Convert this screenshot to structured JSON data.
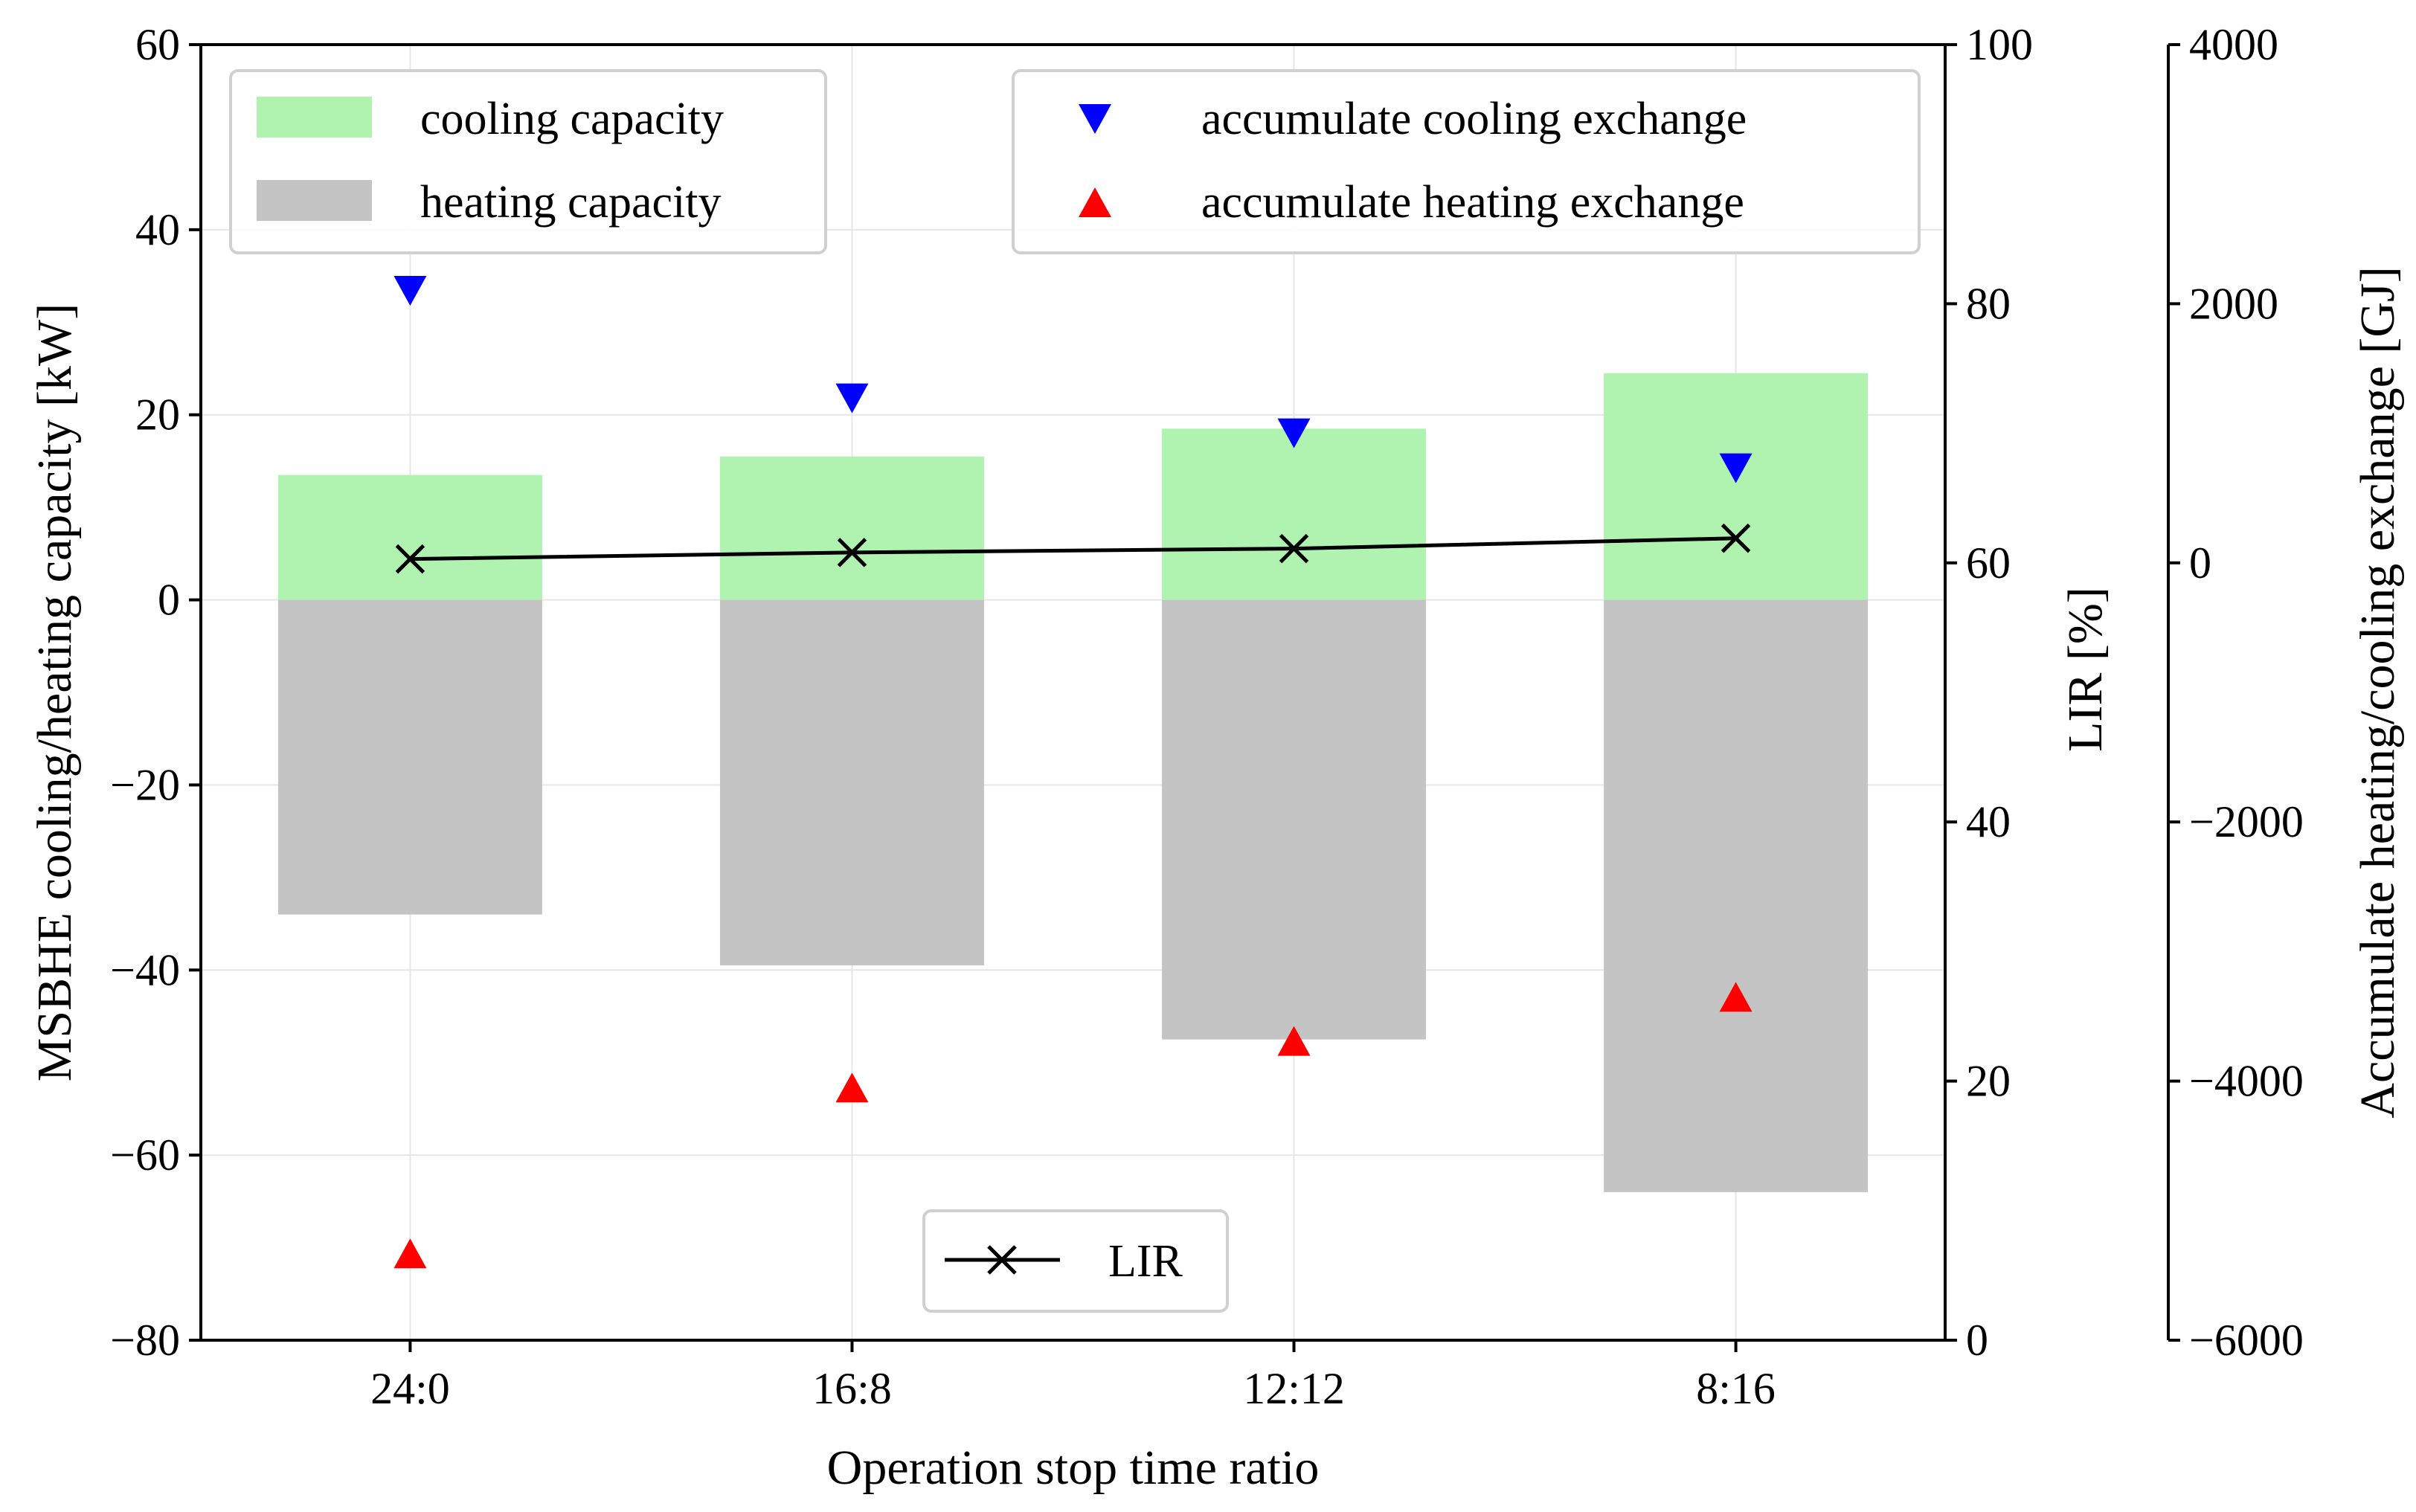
{
  "chart_data": {
    "type": "bar",
    "xlabel": "Operation stop time ratio",
    "categories": [
      "24:0",
      "16:8",
      "12:12",
      "8:16"
    ],
    "axes": {
      "left": {
        "label": "MSBHE cooling/heating capacity [kW]",
        "range": [
          -80,
          60
        ],
        "ticks": [
          60,
          40,
          20,
          0,
          -20,
          -40,
          -60,
          -80
        ],
        "tick_labels": [
          "60",
          "40",
          "20",
          "0",
          "−20",
          "−40",
          "−60",
          "−80"
        ]
      },
      "right1": {
        "label": "LIR [%]",
        "range": [
          0,
          100
        ],
        "ticks": [
          0,
          20,
          40,
          60,
          80,
          100
        ],
        "tick_labels": [
          "0",
          "20",
          "40",
          "60",
          "80",
          "100"
        ]
      },
      "right2": {
        "label": "Accumulate heating/cooling exchange [GJ]",
        "range": [
          -6000,
          4000
        ],
        "ticks": [
          4000,
          2000,
          0,
          -2000,
          -4000,
          -6000
        ],
        "tick_labels": [
          "4000",
          "2000",
          "0",
          "−2000",
          "−4000",
          "−6000"
        ]
      }
    },
    "grid": true,
    "series": [
      {
        "name": "cooling capacity",
        "kind": "bar",
        "axis": "left",
        "color": "#b0f2b0",
        "values": [
          13.5,
          15.5,
          18.5,
          24.5
        ]
      },
      {
        "name": "heating capacity",
        "kind": "bar",
        "axis": "left",
        "color": "#c4c4c4",
        "values": [
          -34,
          -39.5,
          -47.5,
          -64
        ]
      },
      {
        "name": "LIR",
        "kind": "line",
        "marker": "x",
        "axis": "right1",
        "color": "#000000",
        "values": [
          60.3,
          60.8,
          61.1,
          61.9
        ]
      },
      {
        "name": "accumulate cooling exchange",
        "kind": "scatter",
        "marker": "triangle-down",
        "axis": "right2",
        "color": "#0000ff",
        "values": [
          2100,
          1270,
          1000,
          730
        ]
      },
      {
        "name": "accumulate heating exchange",
        "kind": "scatter",
        "marker": "triangle-up",
        "axis": "right2",
        "color": "#ff0000",
        "values": [
          -5330,
          -4050,
          -3690,
          -3350
        ]
      }
    ],
    "legends": [
      {
        "placement": "top-left",
        "entries": [
          "cooling capacity",
          "heating capacity"
        ]
      },
      {
        "placement": "top-right",
        "entries": [
          "accumulate cooling exchange",
          "accumulate heating exchange"
        ]
      },
      {
        "placement": "bottom-center",
        "entries": [
          "LIR"
        ]
      }
    ]
  }
}
